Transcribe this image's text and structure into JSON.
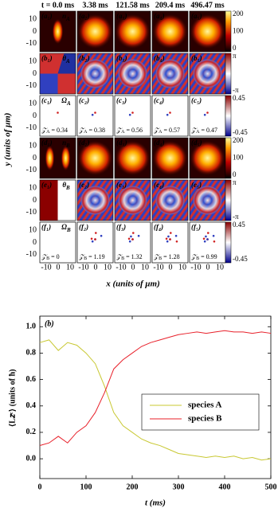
{
  "figure_top": {
    "column_titles": [
      "t = 0.0 ms",
      "3.38 ms",
      "121.58 ms",
      "209.4 ms",
      "496.47 ms"
    ],
    "y_label": "y (units of μm)",
    "x_label": "x (units of μm)",
    "ytick_labels": [
      "10",
      "0",
      "-10"
    ],
    "xtick_labels": [
      "-10",
      "0",
      "10"
    ],
    "rows": [
      {
        "panels": [
          "(a₁)",
          "(a₂)",
          "(a₃)",
          "(a₄)",
          "(a₅)"
        ],
        "quantity": {
          "main": "n",
          "sub": "A"
        },
        "colorbar_ticks": [
          "200",
          "100",
          "0"
        ]
      },
      {
        "panels": [
          "(b₁)",
          "(b₂)",
          "(b₃)",
          "(b₄)",
          "(b₅)"
        ],
        "quantity": {
          "main": "θ",
          "sub": "A"
        },
        "colorbar_ticks": [
          "π",
          "-π"
        ]
      },
      {
        "panels": [
          "(c₁)",
          "(c₂)",
          "(c₃)",
          "(c₄)",
          "(c₅)"
        ],
        "quantity": {
          "main": "Ω",
          "sub": "A"
        },
        "colorbar_ticks": [
          "0.45",
          "-0.45"
        ],
        "annotation": {
          "main": "𝒵",
          "sub": "A",
          "values": [
            " = 0.34",
            " = 0.38",
            " = 0.56",
            " = 0.57",
            " = 0.47"
          ]
        }
      },
      {
        "panels": [
          "(d₁)",
          "(d₂)",
          "(d₃)",
          "(d₄)",
          "(d₅)"
        ],
        "quantity": {
          "main": "n",
          "sub": "B"
        },
        "colorbar_ticks": [
          "200",
          "100",
          "0"
        ]
      },
      {
        "panels": [
          "(e₁)",
          "(e₂)",
          "(e₃)",
          "(e₄)",
          "(e₅)"
        ],
        "quantity": {
          "main": "θ",
          "sub": "B"
        },
        "colorbar_ticks": [
          "π",
          "-π"
        ]
      },
      {
        "panels": [
          "(f₁)",
          "(f₂)",
          "(f₃)",
          "(f₄)",
          "(f₅)"
        ],
        "quantity": {
          "main": "Ω",
          "sub": "B"
        },
        "colorbar_ticks": [
          "0.45",
          "-0.45"
        ],
        "annotation": {
          "main": "𝒵",
          "sub": "B",
          "values": [
            " = 0",
            " = 1.19",
            " = 1.32",
            " = 1.28",
            " = 0.99"
          ]
        }
      }
    ]
  },
  "chart_data": {
    "type": "line",
    "label": "(b)",
    "x_label": "t (ms)",
    "y_label": "⟨L𝑧ᶜ⟩ (units of ħ)",
    "x": [
      0,
      20,
      40,
      60,
      80,
      100,
      120,
      140,
      160,
      180,
      200,
      220,
      240,
      260,
      280,
      300,
      320,
      340,
      360,
      380,
      400,
      420,
      440,
      460,
      480,
      500
    ],
    "series": [
      {
        "name": "species A",
        "color": "#c8c832",
        "values": [
          0.88,
          0.9,
          0.82,
          0.88,
          0.86,
          0.8,
          0.72,
          0.55,
          0.35,
          0.25,
          0.2,
          0.15,
          0.12,
          0.1,
          0.07,
          0.04,
          0.03,
          0.02,
          0.01,
          0.02,
          0.01,
          0.02,
          0.0,
          0.01,
          -0.01,
          0.0
        ]
      },
      {
        "name": "species B",
        "color": "#e8202a",
        "values": [
          0.1,
          0.12,
          0.17,
          0.12,
          0.2,
          0.25,
          0.35,
          0.5,
          0.68,
          0.75,
          0.8,
          0.85,
          0.88,
          0.9,
          0.92,
          0.94,
          0.95,
          0.96,
          0.95,
          0.96,
          0.97,
          0.96,
          0.96,
          0.95,
          0.96,
          0.95
        ]
      }
    ],
    "xlim": [
      0,
      500
    ],
    "ylim": [
      -0.15,
      1.08
    ],
    "xticks": [
      0,
      100,
      200,
      300,
      400,
      500
    ],
    "yticks": [
      {
        "value": 0,
        "label": "0.0"
      },
      {
        "value": 0.2,
        "label": "0.2"
      },
      {
        "value": 0.4,
        "label": "0.4"
      },
      {
        "value": 0.6,
        "label": "0.6"
      },
      {
        "value": 0.8,
        "label": "0.8"
      },
      {
        "value": 1,
        "label": "1.0"
      }
    ],
    "legend_position": "center right"
  }
}
